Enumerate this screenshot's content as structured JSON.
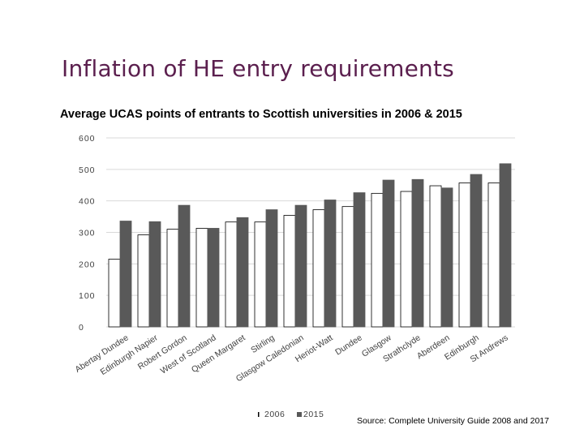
{
  "slide": {
    "title": "Inflation of HE entry requirements",
    "source": "Source: Complete University Guide 2008 and 2017"
  },
  "chart_data": {
    "type": "bar",
    "title": "Average UCAS points of entrants to Scottish universities in 2006 & 2015",
    "xlabel": "",
    "ylabel": "",
    "ylim": [
      0,
      600
    ],
    "yticks": [
      0,
      100,
      200,
      300,
      400,
      500,
      600
    ],
    "grid": true,
    "legend": "bottom-center",
    "categories": [
      "Abertay Dundee",
      "Edinburgh Napier",
      "Robert Gordon",
      "West of Scotland",
      "Queen Margaret",
      "Stirling",
      "Glasgow Caledonian",
      "Heriot-Watt",
      "Dundee",
      "Glasgow",
      "Strathclyde",
      "Aberdeen",
      "Edinburgh",
      "St Andrews"
    ],
    "series": [
      {
        "name": "2006",
        "color": "#ffffff",
        "stroke": "#000000",
        "values": [
          215,
          292,
          310,
          313,
          333,
          333,
          354,
          372,
          382,
          424,
          430,
          448,
          457,
          457
        ]
      },
      {
        "name": "2015",
        "color": "#595959",
        "stroke": "#595959",
        "values": [
          336,
          334,
          386,
          313,
          347,
          372,
          386,
          403,
          426,
          466,
          468,
          441,
          484,
          518
        ]
      }
    ]
  }
}
